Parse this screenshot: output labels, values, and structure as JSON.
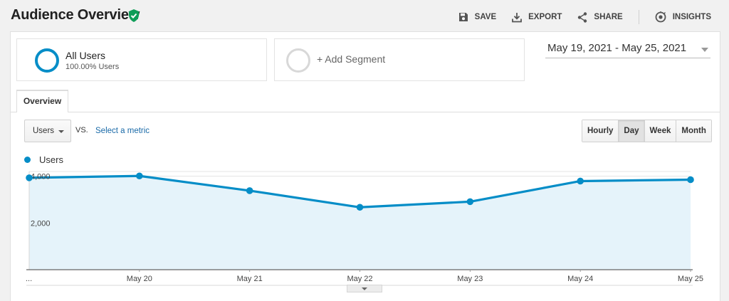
{
  "header": {
    "title": "Audience Overview",
    "actions": [
      {
        "label": "SAVE",
        "icon": "floppy-disk-icon"
      },
      {
        "label": "EXPORT",
        "icon": "download-icon"
      },
      {
        "label": "SHARE",
        "icon": "share-icon"
      },
      {
        "label": "INSIGHTS",
        "icon": "insights-icon"
      }
    ]
  },
  "segments": {
    "primary": {
      "name": "All Users",
      "detail": "100.00% Users"
    },
    "add": {
      "label": "+ Add Segment"
    }
  },
  "date_range": {
    "label": "May 19, 2021 - May 25, 2021"
  },
  "tabs": [
    {
      "label": "Overview",
      "active": true
    }
  ],
  "controls": {
    "metric": "Users",
    "vs": "VS.",
    "select_metric": "Select a metric",
    "granularity": [
      {
        "label": "Hourly",
        "active": false
      },
      {
        "label": "Day",
        "active": true
      },
      {
        "label": "Week",
        "active": false
      },
      {
        "label": "Month",
        "active": false
      }
    ]
  },
  "colors": {
    "series": "#058dc7",
    "area": "#e5f3fa",
    "verified": "#0f9d58"
  },
  "chart_data": {
    "type": "area",
    "x": [
      "May 19",
      "May 20",
      "May 21",
      "May 22",
      "May 23",
      "May 24",
      "May 25"
    ],
    "tick_labels": [
      "...",
      "May 20",
      "May 21",
      "May 22",
      "May 23",
      "May 24",
      "May 25"
    ],
    "series": [
      {
        "name": "Users",
        "values": [
          3930,
          4010,
          3380,
          2670,
          2910,
          3790,
          3850
        ]
      }
    ],
    "y_ticks": [
      "4,000",
      "2,000"
    ],
    "y_tick_values": [
      4000,
      2000
    ],
    "ylim": [
      0,
      4200
    ],
    "legend": "top-left",
    "grid": true
  }
}
